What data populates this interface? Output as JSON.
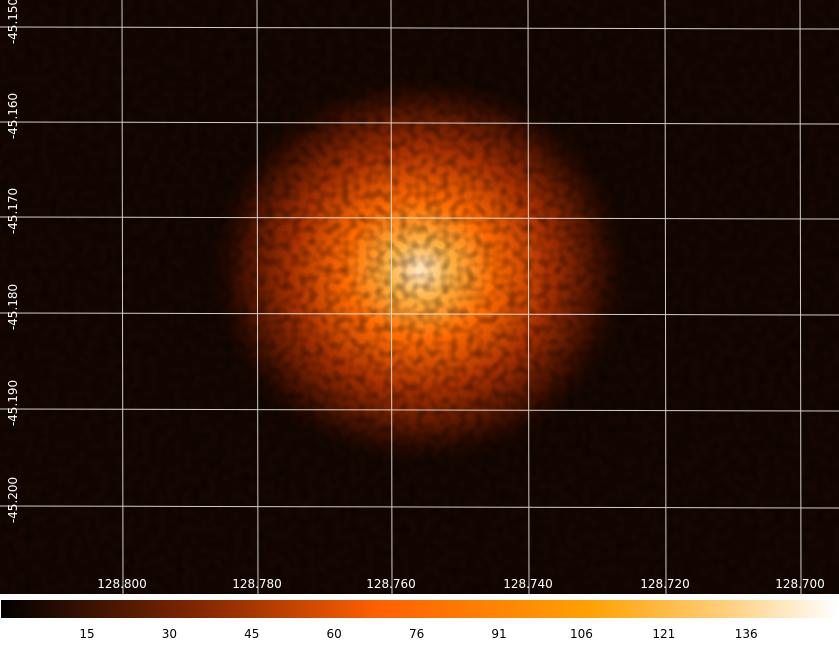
{
  "image": {
    "x_axis": {
      "labels": [
        "128.800",
        "128.780",
        "128.760",
        "128.740",
        "128.720",
        "128.700"
      ]
    },
    "y_axis": {
      "labels": [
        "-45.150",
        "-45.160",
        "-45.170",
        "-45.180",
        "-45.190",
        "-45.200"
      ]
    }
  },
  "colorbar": {
    "labels": [
      15,
      30,
      45,
      60,
      76,
      91,
      106,
      121,
      136
    ]
  }
}
